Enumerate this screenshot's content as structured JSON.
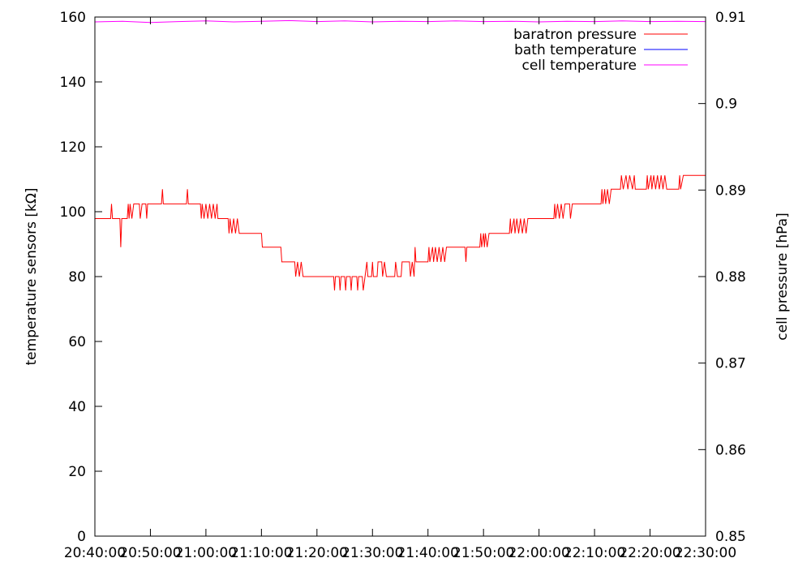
{
  "chart_data": {
    "type": "line",
    "title": "",
    "ylabel": "temperature sensors [kΩ]",
    "y2label": "cell pressure [hPa]",
    "xlabel": "",
    "x_ticks": [
      "20:40:00",
      "20:50:00",
      "21:00:00",
      "21:10:00",
      "21:20:00",
      "21:30:00",
      "21:40:00",
      "21:50:00",
      "22:00:00",
      "22:10:00",
      "22:20:00",
      "22:30:00"
    ],
    "y_ticks": [
      0,
      20,
      40,
      60,
      80,
      100,
      120,
      140,
      160
    ],
    "y2_ticks": [
      0.85,
      0.86,
      0.87,
      0.88,
      0.89,
      0.9,
      0.91
    ],
    "xlim": [
      "20:40:00",
      "22:30:00"
    ],
    "ylim": [
      0,
      160
    ],
    "y2lim": [
      0.85,
      0.91
    ],
    "grid": false,
    "legend_position": "top-right",
    "series": [
      {
        "name": "baratron pressure",
        "color": "#ff0000",
        "axis": "y2",
        "points": [
          [
            "20:40:00",
            0.8867
          ],
          [
            "20:42:50",
            0.8867
          ],
          [
            "20:43:00",
            0.8884
          ],
          [
            "20:43:10",
            0.8867
          ],
          [
            "20:44:30",
            0.8867
          ],
          [
            "20:44:40",
            0.8834
          ],
          [
            "20:44:50",
            0.8867
          ],
          [
            "20:45:50",
            0.8867
          ],
          [
            "20:46:00",
            0.8884
          ],
          [
            "20:46:10",
            0.8867
          ],
          [
            "20:46:20",
            0.8884
          ],
          [
            "20:46:40",
            0.8867
          ],
          [
            "20:47:00",
            0.8884
          ],
          [
            "20:48:00",
            0.8884
          ],
          [
            "20:48:10",
            0.8867
          ],
          [
            "20:48:30",
            0.8884
          ],
          [
            "20:49:10",
            0.8884
          ],
          [
            "20:49:20",
            0.8867
          ],
          [
            "20:49:30",
            0.8884
          ],
          [
            "20:52:00",
            0.8884
          ],
          [
            "20:52:10",
            0.8901
          ],
          [
            "20:52:20",
            0.8884
          ],
          [
            "20:56:30",
            0.8884
          ],
          [
            "20:56:40",
            0.8901
          ],
          [
            "20:56:50",
            0.8884
          ],
          [
            "20:59:00",
            0.8884
          ],
          [
            "20:59:10",
            0.8867
          ],
          [
            "20:59:20",
            0.8884
          ],
          [
            "20:59:40",
            0.8867
          ],
          [
            "21:00:00",
            0.8884
          ],
          [
            "21:00:20",
            0.8867
          ],
          [
            "21:00:40",
            0.8884
          ],
          [
            "21:01:00",
            0.8867
          ],
          [
            "21:01:20",
            0.8884
          ],
          [
            "21:01:40",
            0.8867
          ],
          [
            "21:02:00",
            0.8884
          ],
          [
            "21:02:10",
            0.8867
          ],
          [
            "21:03:30",
            0.8867
          ],
          [
            "21:03:40",
            0.8867
          ],
          [
            "21:04:00",
            0.8867
          ],
          [
            "21:04:10",
            0.885
          ],
          [
            "21:04:20",
            0.8867
          ],
          [
            "21:04:40",
            0.885
          ],
          [
            "21:05:00",
            0.8867
          ],
          [
            "21:05:20",
            0.885
          ],
          [
            "21:05:40",
            0.8867
          ],
          [
            "21:06:00",
            0.885
          ],
          [
            "21:10:00",
            0.885
          ],
          [
            "21:10:10",
            0.8834
          ],
          [
            "21:13:30",
            0.8834
          ],
          [
            "21:13:40",
            0.8817
          ],
          [
            "21:14:00",
            0.8817
          ],
          [
            "21:16:00",
            0.8817
          ],
          [
            "21:16:10",
            0.88
          ],
          [
            "21:16:30",
            0.8817
          ],
          [
            "21:16:50",
            0.88
          ],
          [
            "21:17:10",
            0.8817
          ],
          [
            "21:17:30",
            0.88
          ],
          [
            "21:23:00",
            0.88
          ],
          [
            "21:23:10",
            0.8784
          ],
          [
            "21:23:20",
            0.88
          ],
          [
            "21:24:00",
            0.88
          ],
          [
            "21:24:10",
            0.8784
          ],
          [
            "21:24:20",
            0.88
          ],
          [
            "21:25:00",
            0.88
          ],
          [
            "21:25:10",
            0.8784
          ],
          [
            "21:25:20",
            0.88
          ],
          [
            "21:26:00",
            0.88
          ],
          [
            "21:26:10",
            0.8784
          ],
          [
            "21:26:20",
            0.88
          ],
          [
            "21:27:10",
            0.88
          ],
          [
            "21:27:20",
            0.8784
          ],
          [
            "21:27:30",
            0.88
          ],
          [
            "21:28:10",
            0.88
          ],
          [
            "21:28:20",
            0.8784
          ],
          [
            "21:28:40",
            0.88
          ],
          [
            "21:29:00",
            0.8817
          ],
          [
            "21:29:10",
            0.88
          ],
          [
            "21:29:50",
            0.88
          ],
          [
            "21:30:00",
            0.8817
          ],
          [
            "21:30:10",
            0.88
          ],
          [
            "21:30:50",
            0.88
          ],
          [
            "21:31:00",
            0.8817
          ],
          [
            "21:31:40",
            0.8817
          ],
          [
            "21:31:50",
            0.88
          ],
          [
            "21:32:10",
            0.8817
          ],
          [
            "21:32:30",
            0.88
          ],
          [
            "21:34:00",
            0.88
          ],
          [
            "21:34:10",
            0.8817
          ],
          [
            "21:34:30",
            0.88
          ],
          [
            "21:35:10",
            0.88
          ],
          [
            "21:35:20",
            0.8817
          ],
          [
            "21:36:40",
            0.8817
          ],
          [
            "21:36:50",
            0.88
          ],
          [
            "21:37:10",
            0.8817
          ],
          [
            "21:37:30",
            0.88
          ],
          [
            "21:37:40",
            0.8834
          ],
          [
            "21:37:50",
            0.8817
          ],
          [
            "21:40:00",
            0.8817
          ],
          [
            "21:40:10",
            0.8834
          ],
          [
            "21:40:20",
            0.8817
          ],
          [
            "21:40:50",
            0.8834
          ],
          [
            "21:41:00",
            0.8817
          ],
          [
            "21:41:20",
            0.8834
          ],
          [
            "21:41:40",
            0.8817
          ],
          [
            "21:42:00",
            0.8834
          ],
          [
            "21:42:20",
            0.8817
          ],
          [
            "21:42:40",
            0.8834
          ],
          [
            "21:43:00",
            0.8817
          ],
          [
            "21:43:20",
            0.8834
          ],
          [
            "21:46:40",
            0.8834
          ],
          [
            "21:46:50",
            0.8817
          ],
          [
            "21:47:00",
            0.8834
          ],
          [
            "21:49:20",
            0.8834
          ],
          [
            "21:49:30",
            0.885
          ],
          [
            "21:49:40",
            0.8834
          ],
          [
            "21:50:00",
            0.885
          ],
          [
            "21:50:10",
            0.8834
          ],
          [
            "21:50:20",
            0.885
          ],
          [
            "21:50:40",
            0.8834
          ],
          [
            "21:51:00",
            0.885
          ],
          [
            "21:54:40",
            0.885
          ],
          [
            "21:54:50",
            0.8867
          ],
          [
            "21:55:00",
            0.885
          ],
          [
            "21:55:30",
            0.8867
          ],
          [
            "21:55:40",
            0.885
          ],
          [
            "21:56:00",
            0.8867
          ],
          [
            "21:56:20",
            0.885
          ],
          [
            "21:56:40",
            0.8867
          ],
          [
            "21:57:00",
            0.885
          ],
          [
            "21:57:20",
            0.8867
          ],
          [
            "21:57:40",
            0.885
          ],
          [
            "21:58:00",
            0.8867
          ],
          [
            "22:02:40",
            0.8867
          ],
          [
            "22:02:50",
            0.8884
          ],
          [
            "22:03:00",
            0.8867
          ],
          [
            "22:03:20",
            0.8884
          ],
          [
            "22:03:40",
            0.8867
          ],
          [
            "22:04:00",
            0.8884
          ],
          [
            "22:04:20",
            0.8867
          ],
          [
            "22:04:40",
            0.8884
          ],
          [
            "22:05:30",
            0.8884
          ],
          [
            "22:05:40",
            0.8867
          ],
          [
            "22:06:00",
            0.8884
          ],
          [
            "22:11:10",
            0.8884
          ],
          [
            "22:11:20",
            0.8901
          ],
          [
            "22:11:30",
            0.8884
          ],
          [
            "22:11:50",
            0.8901
          ],
          [
            "22:12:00",
            0.8884
          ],
          [
            "22:12:20",
            0.8901
          ],
          [
            "22:12:40",
            0.8884
          ],
          [
            "22:13:00",
            0.8901
          ],
          [
            "22:13:10",
            0.8901
          ],
          [
            "22:14:40",
            0.8901
          ],
          [
            "22:14:50",
            0.8917
          ],
          [
            "22:15:10",
            0.8901
          ],
          [
            "22:15:40",
            0.8917
          ],
          [
            "22:16:00",
            0.8901
          ],
          [
            "22:16:20",
            0.8917
          ],
          [
            "22:16:50",
            0.8901
          ],
          [
            "22:17:10",
            0.8917
          ],
          [
            "22:17:20",
            0.8901
          ],
          [
            "22:19:20",
            0.8901
          ],
          [
            "22:19:30",
            0.8917
          ],
          [
            "22:19:40",
            0.8901
          ],
          [
            "22:20:10",
            0.8917
          ],
          [
            "22:20:20",
            0.8901
          ],
          [
            "22:20:40",
            0.8917
          ],
          [
            "22:21:00",
            0.8901
          ],
          [
            "22:21:20",
            0.8917
          ],
          [
            "22:21:40",
            0.8901
          ],
          [
            "22:22:00",
            0.8917
          ],
          [
            "22:22:20",
            0.8901
          ],
          [
            "22:22:40",
            0.8917
          ],
          [
            "22:23:00",
            0.8901
          ],
          [
            "22:25:10",
            0.8901
          ],
          [
            "22:25:20",
            0.8917
          ],
          [
            "22:25:30",
            0.8901
          ],
          [
            "22:26:00",
            0.8917
          ],
          [
            "22:30:00",
            0.8917
          ]
        ]
      },
      {
        "name": "bath temperature",
        "color": "#0000ff",
        "axis": "y",
        "points": []
      },
      {
        "name": "cell temperature",
        "color": "#ff00ff",
        "axis": "y",
        "points": [
          [
            "20:40:00",
            158.5
          ],
          [
            "20:45:00",
            158.7
          ],
          [
            "20:50:00",
            158.3
          ],
          [
            "20:55:00",
            158.6
          ],
          [
            "21:00:00",
            158.8
          ],
          [
            "21:05:00",
            158.5
          ],
          [
            "21:10:00",
            158.7
          ],
          [
            "21:15:00",
            158.9
          ],
          [
            "21:20:00",
            158.6
          ],
          [
            "21:25:00",
            158.8
          ],
          [
            "21:30:00",
            158.5
          ],
          [
            "21:35:00",
            158.7
          ],
          [
            "21:40:00",
            158.6
          ],
          [
            "21:45:00",
            158.8
          ],
          [
            "21:50:00",
            158.6
          ],
          [
            "21:55:00",
            158.7
          ],
          [
            "22:00:00",
            158.5
          ],
          [
            "22:05:00",
            158.7
          ],
          [
            "22:10:00",
            158.6
          ],
          [
            "22:15:00",
            158.8
          ],
          [
            "22:20:00",
            158.6
          ],
          [
            "22:25:00",
            158.7
          ],
          [
            "22:30:00",
            158.6
          ]
        ]
      }
    ]
  }
}
